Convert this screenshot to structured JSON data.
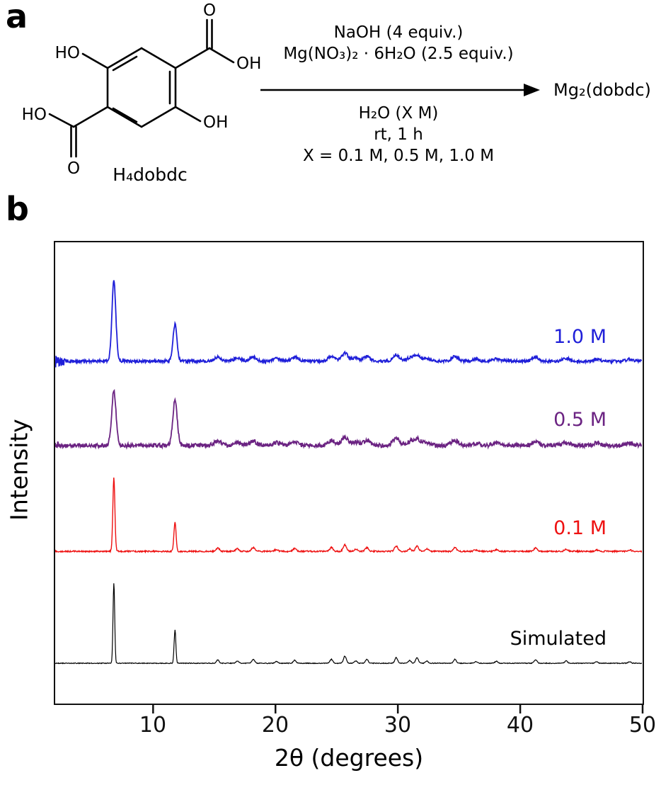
{
  "figure": {
    "panel_a_label": "a",
    "panel_b_label": "b"
  },
  "scheme": {
    "molecule_caption": "H₄dobdc",
    "atom_labels": {
      "ho_top": "HO",
      "o_top": "O",
      "oh_top": "OH",
      "ho_left": "HO",
      "o_bottom": "O",
      "oh_bottom": "OH"
    },
    "conditions_above": [
      "NaOH (4 equiv.)",
      "Mg(NO₃)₂ · 6H₂O (2.5 equiv.)"
    ],
    "conditions_below": [
      "H₂O (X M)",
      "rt, 1 h",
      "X = 0.1 M, 0.5 M, 1.0 M"
    ],
    "product": "Mg₂(dobdc)"
  },
  "chart_data": {
    "type": "line",
    "title": "",
    "xlabel": "2θ (degrees)",
    "ylabel": "Intensity",
    "xlim": [
      2,
      50
    ],
    "x_ticks": [
      10,
      20,
      30,
      40,
      50
    ],
    "grid": false,
    "legend_position": "inline-right",
    "series": [
      {
        "name": "1.0 M",
        "color": "#1f1fd9",
        "stroke_width": 1.8,
        "baseline_frac": 0.258,
        "height_frac": 0.174,
        "peak_sigma_deg": 0.16,
        "noise_frac": 0.003,
        "start_noise_frac": 0.012,
        "label_top_frac": 0.183,
        "peaks": [
          [
            6.8,
            1.0
          ],
          [
            11.8,
            0.46
          ],
          [
            15.3,
            0.05
          ],
          [
            16.9,
            0.04
          ],
          [
            18.2,
            0.05
          ],
          [
            20.1,
            0.03
          ],
          [
            21.6,
            0.05
          ],
          [
            24.6,
            0.06
          ],
          [
            25.7,
            0.1
          ],
          [
            26.6,
            0.04
          ],
          [
            27.5,
            0.06
          ],
          [
            29.9,
            0.08
          ],
          [
            31.0,
            0.04
          ],
          [
            31.6,
            0.08
          ],
          [
            32.4,
            0.035
          ],
          [
            34.7,
            0.06
          ],
          [
            36.4,
            0.025
          ],
          [
            38.1,
            0.03
          ],
          [
            41.3,
            0.05
          ],
          [
            43.8,
            0.035
          ],
          [
            46.3,
            0.025
          ],
          [
            49.0,
            0.025
          ]
        ]
      },
      {
        "name": "0.5 M",
        "color": "#6b2382",
        "stroke_width": 1.8,
        "baseline_frac": 0.441,
        "height_frac": 0.118,
        "peak_sigma_deg": 0.18,
        "noise_frac": 0.0045,
        "start_noise_frac": 0.005,
        "label_top_frac": 0.363,
        "peaks": [
          [
            6.8,
            1.0
          ],
          [
            11.8,
            0.82
          ],
          [
            15.3,
            0.08
          ],
          [
            16.9,
            0.06
          ],
          [
            18.2,
            0.08
          ],
          [
            20.1,
            0.05
          ],
          [
            21.6,
            0.07
          ],
          [
            24.6,
            0.09
          ],
          [
            25.7,
            0.14
          ],
          [
            26.6,
            0.06
          ],
          [
            27.5,
            0.08
          ],
          [
            29.9,
            0.12
          ],
          [
            31.0,
            0.06
          ],
          [
            31.6,
            0.12
          ],
          [
            32.4,
            0.05
          ],
          [
            34.7,
            0.09
          ],
          [
            36.4,
            0.04
          ],
          [
            38.1,
            0.045
          ],
          [
            41.3,
            0.07
          ],
          [
            43.8,
            0.05
          ],
          [
            46.3,
            0.04
          ],
          [
            49.0,
            0.035
          ]
        ]
      },
      {
        "name": "0.1 M",
        "color": "#ee1111",
        "stroke_width": 1.4,
        "baseline_frac": 0.671,
        "height_frac": 0.16,
        "peak_sigma_deg": 0.085,
        "noise_frac": 0.0015,
        "start_noise_frac": 0,
        "label_top_frac": 0.598,
        "peaks": [
          [
            6.8,
            1.0
          ],
          [
            11.8,
            0.4
          ],
          [
            15.3,
            0.045
          ],
          [
            16.9,
            0.035
          ],
          [
            18.2,
            0.05
          ],
          [
            20.1,
            0.025
          ],
          [
            21.6,
            0.04
          ],
          [
            24.6,
            0.05
          ],
          [
            25.7,
            0.09
          ],
          [
            26.6,
            0.03
          ],
          [
            27.5,
            0.05
          ],
          [
            29.9,
            0.07
          ],
          [
            31.0,
            0.035
          ],
          [
            31.6,
            0.07
          ],
          [
            32.4,
            0.03
          ],
          [
            34.7,
            0.05
          ],
          [
            36.4,
            0.02
          ],
          [
            38.1,
            0.025
          ],
          [
            41.3,
            0.045
          ],
          [
            43.8,
            0.03
          ],
          [
            46.3,
            0.02
          ],
          [
            49.0,
            0.02
          ]
        ]
      },
      {
        "name": "Simulated",
        "color": "#000000",
        "stroke_width": 1.2,
        "baseline_frac": 0.914,
        "height_frac": 0.174,
        "peak_sigma_deg": 0.07,
        "noise_frac": 0.0008,
        "start_noise_frac": 0,
        "label_top_frac": 0.837,
        "peaks": [
          [
            6.8,
            1.0
          ],
          [
            11.8,
            0.42
          ],
          [
            15.3,
            0.04
          ],
          [
            16.9,
            0.03
          ],
          [
            18.2,
            0.05
          ],
          [
            20.1,
            0.025
          ],
          [
            21.6,
            0.04
          ],
          [
            24.6,
            0.05
          ],
          [
            25.7,
            0.09
          ],
          [
            26.6,
            0.03
          ],
          [
            27.5,
            0.05
          ],
          [
            29.9,
            0.07
          ],
          [
            31.0,
            0.035
          ],
          [
            31.6,
            0.07
          ],
          [
            32.4,
            0.03
          ],
          [
            34.7,
            0.05
          ],
          [
            36.4,
            0.02
          ],
          [
            38.1,
            0.025
          ],
          [
            41.3,
            0.045
          ],
          [
            43.8,
            0.03
          ],
          [
            46.3,
            0.02
          ],
          [
            49.0,
            0.02
          ]
        ]
      }
    ]
  }
}
